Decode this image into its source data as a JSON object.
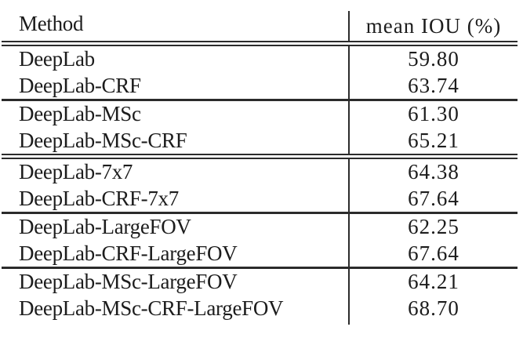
{
  "colors": {
    "background": "#ffffff",
    "text": "#1c1c1c",
    "rule": "#2b2b2b"
  },
  "table": {
    "columns": [
      "Method",
      "mean IOU (%)"
    ],
    "groups": [
      {
        "separator_after": "single",
        "rows": [
          {
            "method": "DeepLab",
            "iou": "59.80"
          },
          {
            "method": "DeepLab-CRF",
            "iou": "63.74"
          }
        ]
      },
      {
        "separator_after": "double",
        "rows": [
          {
            "method": "DeepLab-MSc",
            "iou": "61.30"
          },
          {
            "method": "DeepLab-MSc-CRF",
            "iou": "65.21"
          }
        ]
      },
      {
        "separator_after": "single",
        "rows": [
          {
            "method": "DeepLab-7x7",
            "iou": "64.38"
          },
          {
            "method": "DeepLab-CRF-7x7",
            "iou": "67.64"
          }
        ]
      },
      {
        "separator_after": "single",
        "rows": [
          {
            "method": "DeepLab-LargeFOV",
            "iou": "62.25"
          },
          {
            "method": "DeepLab-CRF-LargeFOV",
            "iou": "67.64"
          }
        ]
      },
      {
        "separator_after": "none",
        "rows": [
          {
            "method": "DeepLab-MSc-LargeFOV",
            "iou": "64.21"
          },
          {
            "method": "DeepLab-MSc-CRF-LargeFOV",
            "iou": "68.70"
          }
        ]
      }
    ]
  },
  "chart_data": {
    "type": "table",
    "columns": [
      "Method",
      "mean IOU (%)"
    ],
    "rows": [
      [
        "DeepLab",
        59.8
      ],
      [
        "DeepLab-CRF",
        63.74
      ],
      [
        "DeepLab-MSc",
        61.3
      ],
      [
        "DeepLab-MSc-CRF",
        65.21
      ],
      [
        "DeepLab-7x7",
        64.38
      ],
      [
        "DeepLab-CRF-7x7",
        67.64
      ],
      [
        "DeepLab-LargeFOV",
        62.25
      ],
      [
        "DeepLab-CRF-LargeFOV",
        67.64
      ],
      [
        "DeepLab-MSc-LargeFOV",
        64.21
      ],
      [
        "DeepLab-MSc-CRF-LargeFOV",
        68.7
      ]
    ]
  }
}
